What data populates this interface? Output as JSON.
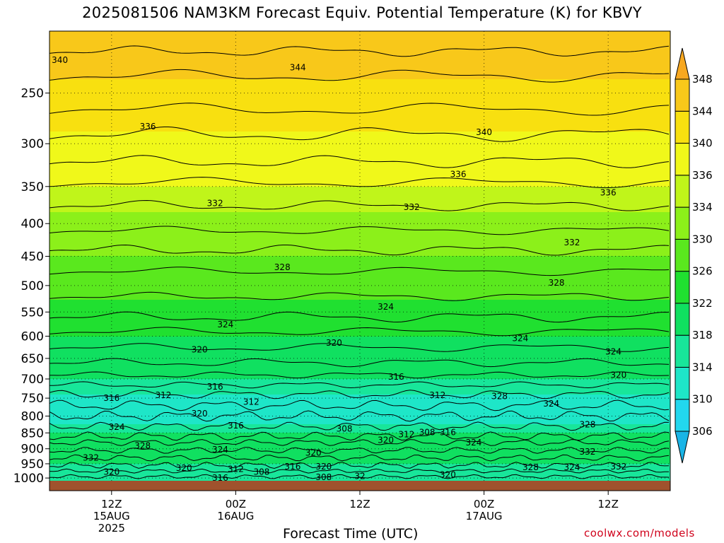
{
  "title": "2025081506 NAM3KM Forecast Equiv. Potential Temperature (K) for KBVY",
  "credit": "coolwx.com/models",
  "chart_data": {
    "type": "heatmap",
    "title": "2025081506 NAM3KM Forecast Equiv. Potential Temperature (K) for KBVY",
    "xlabel": "Forecast Time (UTC)",
    "ylabel": "",
    "y_ticks": [
      250,
      300,
      350,
      400,
      450,
      500,
      550,
      600,
      650,
      700,
      750,
      800,
      850,
      900,
      950,
      1000
    ],
    "y_range": [
      200,
      1010
    ],
    "y_scale": "log",
    "x_ticks": [
      {
        "hour": 6,
        "label": "12Z",
        "label2": "15AUG",
        "label3": "2025"
      },
      {
        "hour": 18,
        "label": "00Z",
        "label2": "16AUG",
        "label3": ""
      },
      {
        "hour": 30,
        "label": "12Z",
        "label2": "",
        "label3": ""
      },
      {
        "hour": 42,
        "label": "00Z",
        "label2": "17AUG",
        "label3": ""
      },
      {
        "hour": 54,
        "label": "12Z",
        "label2": "",
        "label3": ""
      }
    ],
    "x_range": [
      0,
      60
    ],
    "grid": true,
    "colorbar": {
      "levels": [
        306,
        310,
        314,
        318,
        322,
        326,
        330,
        334,
        336,
        340,
        344,
        348
      ],
      "labels": [
        "306",
        "310",
        "314",
        "318",
        "322",
        "326",
        "330",
        "334",
        "336",
        "340",
        "344",
        "348"
      ],
      "colors": [
        "#19b4e6",
        "#22d7ee",
        "#1ee6c8",
        "#18e69a",
        "#10e060",
        "#20e030",
        "#5ae81e",
        "#8cf01a",
        "#c0f51a",
        "#f0f81a",
        "#f8e010",
        "#f8c81a",
        "#f8a820"
      ]
    },
    "profile": [
      {
        "p": 200,
        "theta_e": 347
      },
      {
        "p": 250,
        "theta_e": 343
      },
      {
        "p": 300,
        "theta_e": 339
      },
      {
        "p": 350,
        "theta_e": 336
      },
      {
        "p": 400,
        "theta_e": 333
      },
      {
        "p": 450,
        "theta_e": 330
      },
      {
        "p": 500,
        "theta_e": 327
      },
      {
        "p": 550,
        "theta_e": 325
      },
      {
        "p": 600,
        "theta_e": 322
      },
      {
        "p": 650,
        "theta_e": 320
      },
      {
        "p": 700,
        "theta_e": 318
      },
      {
        "p": 750,
        "theta_e": 313
      },
      {
        "p": 800,
        "theta_e": 310
      },
      {
        "p": 850,
        "theta_e": 318
      },
      {
        "p": 900,
        "theta_e": 322
      },
      {
        "p": 950,
        "theta_e": 318
      },
      {
        "p": 1000,
        "theta_e": 316
      }
    ],
    "contour_labels": [
      {
        "hour": 1,
        "p": 222,
        "text": "340"
      },
      {
        "hour": 24,
        "p": 228,
        "text": "344"
      },
      {
        "hour": 9.5,
        "p": 282,
        "text": "336"
      },
      {
        "hour": 42,
        "p": 288,
        "text": "340"
      },
      {
        "hour": 39.5,
        "p": 335,
        "text": "336"
      },
      {
        "hour": 54,
        "p": 358,
        "text": "336"
      },
      {
        "hour": 16,
        "p": 372,
        "text": "332"
      },
      {
        "hour": 35,
        "p": 377,
        "text": "332"
      },
      {
        "hour": 50.5,
        "p": 428,
        "text": "332"
      },
      {
        "hour": 22.5,
        "p": 468,
        "text": "328"
      },
      {
        "hour": 49,
        "p": 495,
        "text": "328"
      },
      {
        "hour": 17,
        "p": 575,
        "text": "324"
      },
      {
        "hour": 32.5,
        "p": 540,
        "text": "324"
      },
      {
        "hour": 45.5,
        "p": 605,
        "text": "324"
      },
      {
        "hour": 54.5,
        "p": 635,
        "text": "324"
      },
      {
        "hour": 14.5,
        "p": 630,
        "text": "320"
      },
      {
        "hour": 27.5,
        "p": 615,
        "text": "320"
      },
      {
        "hour": 55,
        "p": 690,
        "text": "320"
      },
      {
        "hour": 33.5,
        "p": 695,
        "text": "316"
      },
      {
        "hour": 16,
        "p": 720,
        "text": "316"
      },
      {
        "hour": 11,
        "p": 742,
        "text": "312"
      },
      {
        "hour": 19.5,
        "p": 760,
        "text": "312"
      },
      {
        "hour": 37.5,
        "p": 742,
        "text": "312"
      },
      {
        "hour": 6,
        "p": 750,
        "text": "316"
      },
      {
        "hour": 43.5,
        "p": 745,
        "text": "328"
      },
      {
        "hour": 48.5,
        "p": 765,
        "text": "324"
      },
      {
        "hour": 14.5,
        "p": 793,
        "text": "320"
      },
      {
        "hour": 18,
        "p": 828,
        "text": "316"
      },
      {
        "hour": 6.5,
        "p": 832,
        "text": "324"
      },
      {
        "hour": 28.5,
        "p": 838,
        "text": "308"
      },
      {
        "hour": 36.5,
        "p": 848,
        "text": "308"
      },
      {
        "hour": 38.5,
        "p": 848,
        "text": "316"
      },
      {
        "hour": 34.5,
        "p": 855,
        "text": "312"
      },
      {
        "hour": 32.5,
        "p": 872,
        "text": "320"
      },
      {
        "hour": 41,
        "p": 880,
        "text": "324"
      },
      {
        "hour": 52,
        "p": 825,
        "text": "328"
      },
      {
        "hour": 9,
        "p": 890,
        "text": "328"
      },
      {
        "hour": 16.5,
        "p": 903,
        "text": "324"
      },
      {
        "hour": 25.5,
        "p": 913,
        "text": "320"
      },
      {
        "hour": 52,
        "p": 910,
        "text": "332"
      },
      {
        "hour": 4,
        "p": 930,
        "text": "332"
      },
      {
        "hour": 13,
        "p": 965,
        "text": "320"
      },
      {
        "hour": 18,
        "p": 968,
        "text": "312"
      },
      {
        "hour": 20.5,
        "p": 978,
        "text": "308"
      },
      {
        "hour": 23.5,
        "p": 960,
        "text": "316"
      },
      {
        "hour": 26.5,
        "p": 960,
        "text": "320"
      },
      {
        "hour": 6,
        "p": 978,
        "text": "320"
      },
      {
        "hour": 16.5,
        "p": 1000,
        "text": "316"
      },
      {
        "hour": 26.5,
        "p": 997,
        "text": "308"
      },
      {
        "hour": 30,
        "p": 993,
        "text": "32"
      },
      {
        "hour": 38.5,
        "p": 988,
        "text": "320"
      },
      {
        "hour": 46.5,
        "p": 962,
        "text": "328"
      },
      {
        "hour": 50.5,
        "p": 962,
        "text": "324"
      },
      {
        "hour": 55,
        "p": 960,
        "text": "332"
      }
    ]
  }
}
